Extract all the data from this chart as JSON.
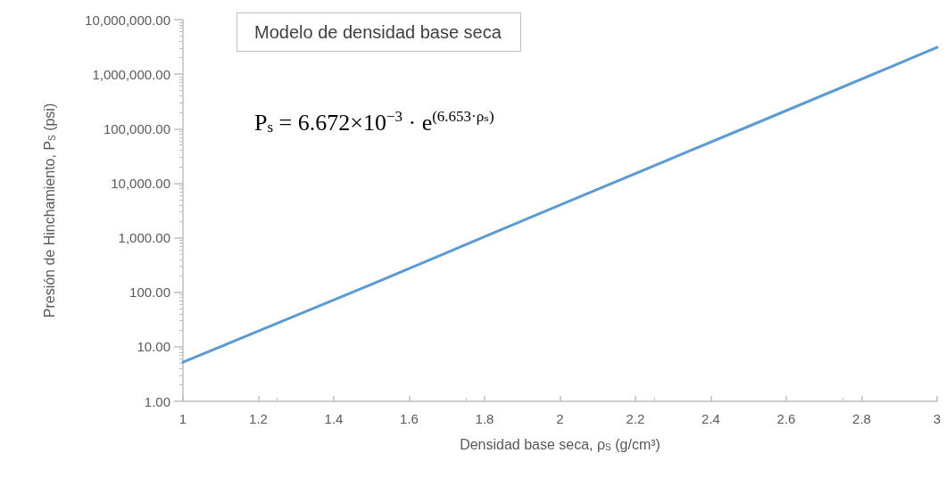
{
  "chart_data": {
    "type": "line",
    "title": "Modelo de densidad base seca",
    "xlabel": "Densidad base seca, ρ$_{S}$ (g/cm³)",
    "ylabel": "Presión de Hinchamiento, P$_{S}$ (psi)",
    "annotations": [
      "P$_{s}$ = 6.672×10$^{−3}$ · e$^{(6.653·ρₛ)}$"
    ],
    "series": [
      {
        "color": "#5b9bd5",
        "x": [
          1,
          1.5,
          2,
          2.5,
          3
        ],
        "values": [
          5.2,
          140,
          4000,
          110000,
          3100000
        ]
      }
    ],
    "xlim": [
      1,
      3
    ],
    "xticks": [
      1,
      1.2,
      1.4,
      1.6,
      1.8,
      2,
      2.2,
      2.4,
      2.6,
      2.8,
      3
    ],
    "ylim": [
      1,
      10000000
    ],
    "yticks": [
      {
        "value": 1,
        "label": "1.00"
      },
      {
        "value": 10,
        "label": "10.00"
      },
      {
        "value": 100,
        "label": "100.00"
      },
      {
        "value": 1000,
        "label": "1,000.00"
      },
      {
        "value": 10000,
        "label": "10,000.00"
      },
      {
        "value": 100000,
        "label": "100,000.00"
      },
      {
        "value": 1000000,
        "label": "1,000,000.00"
      },
      {
        "value": 10000000,
        "label": "10,000,000.00"
      }
    ],
    "log": "y",
    "grid": false,
    "marker": "none",
    "line_style": "solid"
  }
}
